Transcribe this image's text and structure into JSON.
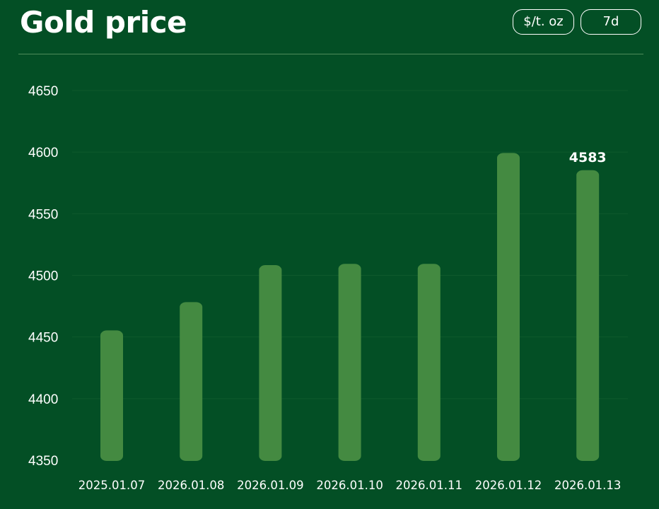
{
  "header": {
    "title": "Gold price",
    "unit_label": "$/t. oz",
    "range_label": "7d"
  },
  "colors": {
    "background": "#034f25",
    "bar": "#448a41",
    "text": "#ffffff",
    "grid": "#0f5a2c"
  },
  "chart_data": {
    "type": "bar",
    "categories": [
      "2025.01.07",
      "2026.01.08",
      "2026.01.09",
      "2026.01.10",
      "2026.01.11",
      "2026.01.12",
      "2026.01.13"
    ],
    "values": [
      4453,
      4476,
      4506,
      4507,
      4507,
      4597,
      4583
    ],
    "title": "",
    "xlabel": "",
    "ylabel": "",
    "ylim": [
      4350,
      4650
    ],
    "yticks": [
      4350,
      4400,
      4450,
      4500,
      4550,
      4600,
      4650
    ],
    "grid": true,
    "data_labels": [
      {
        "index": 6,
        "text": "4583"
      }
    ]
  }
}
